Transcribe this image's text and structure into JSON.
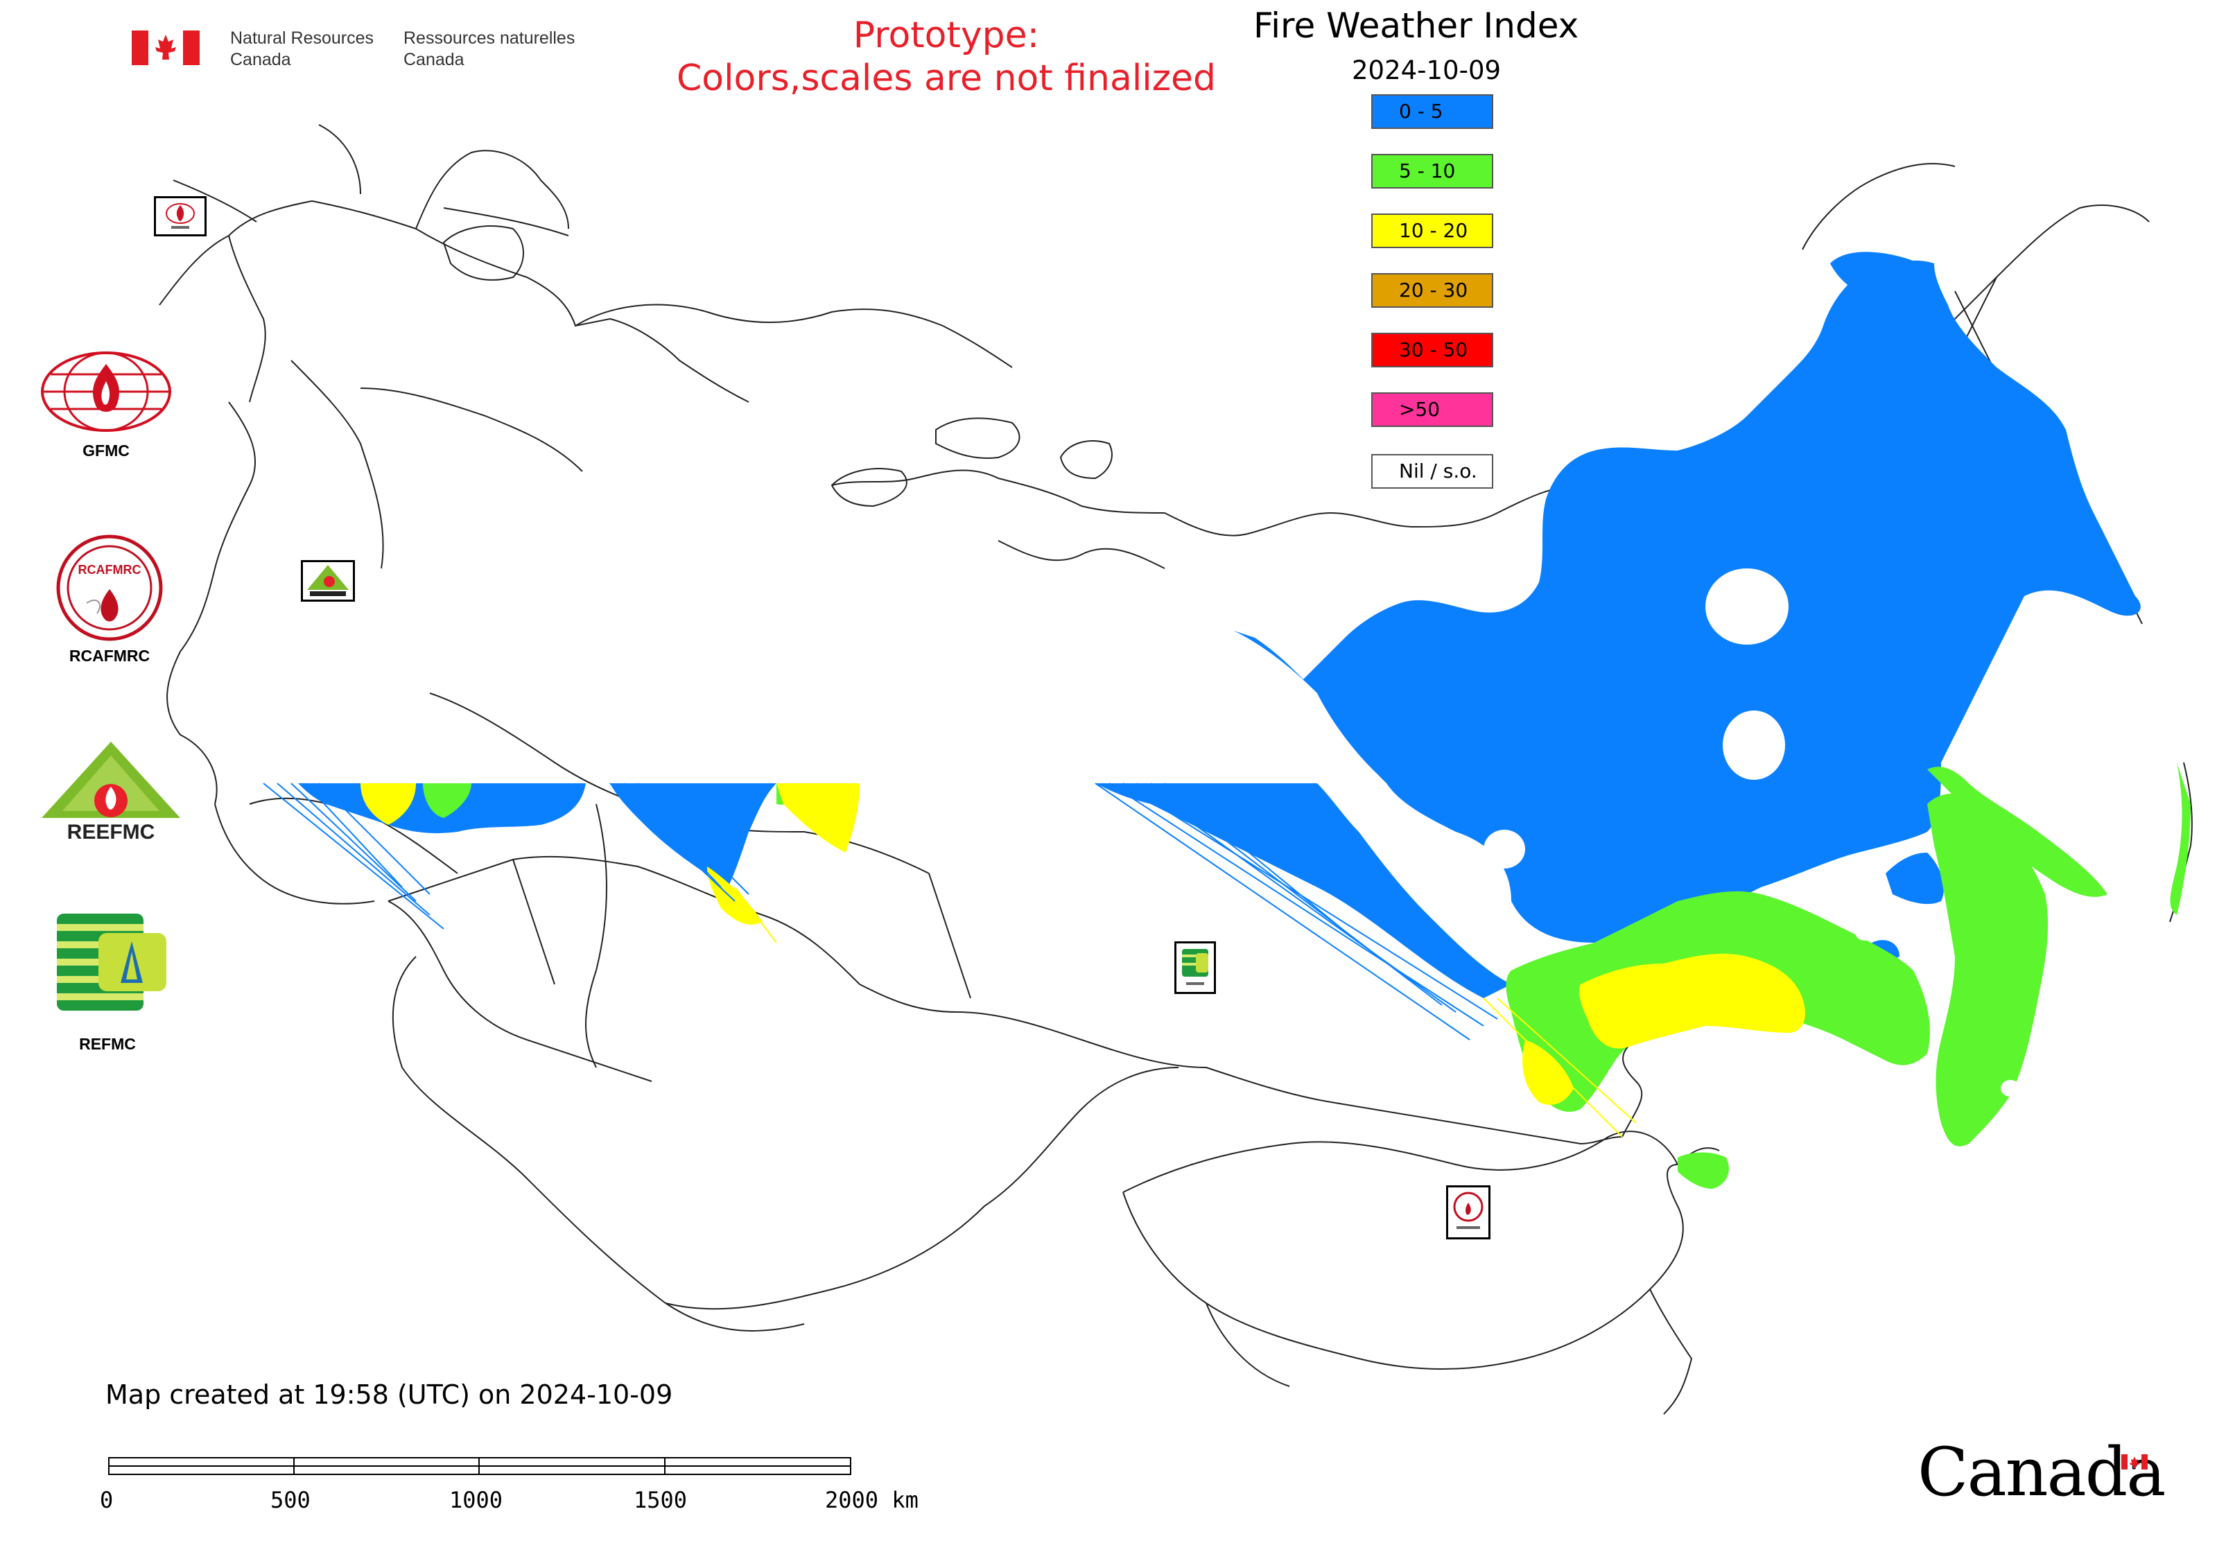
{
  "header": {
    "department_en_line1": "Natural Resources",
    "department_en_line2": "Canada",
    "department_fr_line1": "Ressources naturelles",
    "department_fr_line2": "Canada",
    "prototype_line1": "Prototype:",
    "prototype_line2": "Colors,scales are not finalized",
    "title": "Fire Weather Index",
    "date": "2024-10-09"
  },
  "legend": {
    "items": [
      {
        "label": "0 - 5",
        "color": "#0a80ff"
      },
      {
        "label": "5 - 10",
        "color": "#5cf52e"
      },
      {
        "label": "10 - 20",
        "color": "#ffff00"
      },
      {
        "label": "20 - 30",
        "color": "#e0a000"
      },
      {
        "label": "30 - 50",
        "color": "#ff0000"
      },
      {
        "label": ">50",
        "color": "#ff3399"
      },
      {
        "label": "Nil / s.o.",
        "color": "#ffffff"
      }
    ]
  },
  "logos": {
    "gfmc": "GFMC",
    "rcafmrc": "RCAFMRC",
    "reefmc": "REEFMC",
    "refmc": "REFMC",
    "reefmc_wordmark": "REEFMC",
    "rcafmrc_wordmark": "RCAFMRC"
  },
  "footer": {
    "created": "Map created at 19:58 (UTC) on 2024-10-09",
    "scale_ticks": [
      "0",
      "500",
      "1000",
      "1500",
      "2000 km"
    ],
    "wordmark": "Canada"
  },
  "colors": {
    "fwi_blue": "#0a80ff",
    "fwi_green": "#5cf52e",
    "fwi_yellow": "#ffff00",
    "prototype_red": "#e8202a",
    "flag_red": "#e31b23"
  }
}
